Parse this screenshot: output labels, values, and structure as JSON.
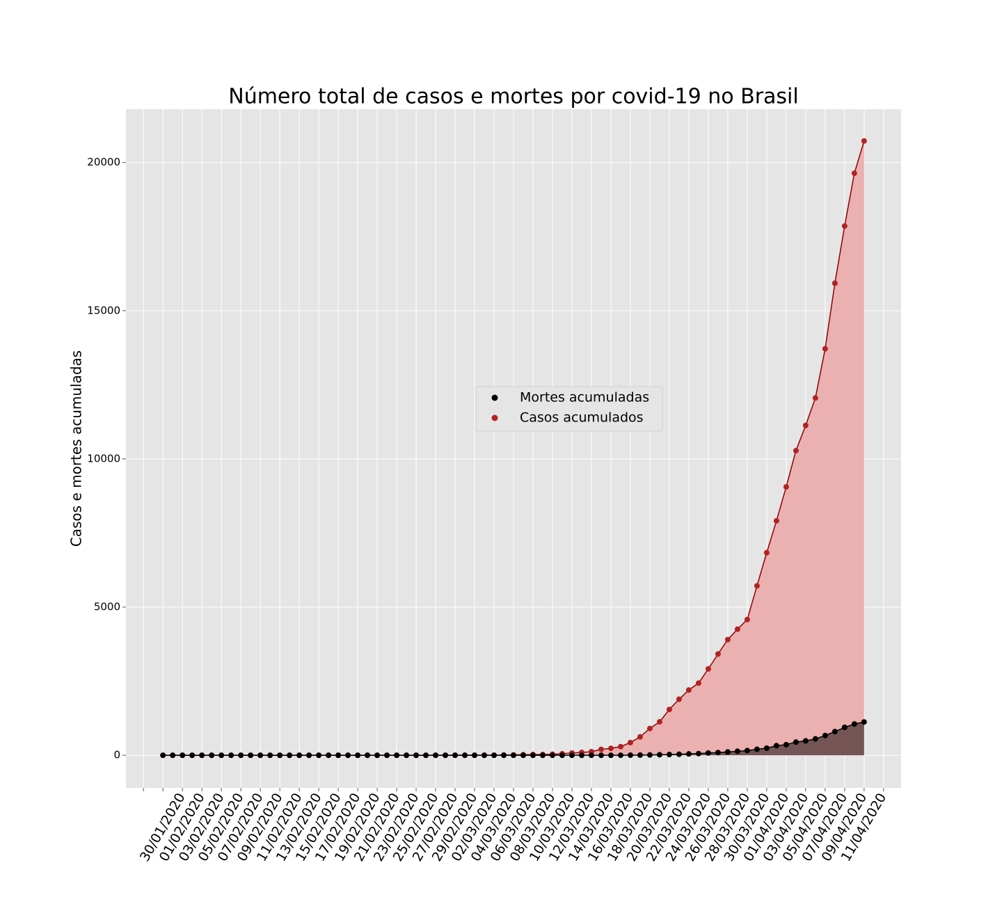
{
  "chart_data": {
    "type": "area_line",
    "title": "Número total de casos e mortes por covid-19 no Brasil",
    "y_label": "Casos e mortes acumuladas",
    "categories": [
      "30/01/2020",
      null,
      "01/02/2020",
      null,
      "03/02/2020",
      null,
      "05/02/2020",
      null,
      "07/02/2020",
      null,
      "09/02/2020",
      null,
      "11/02/2020",
      null,
      "13/02/2020",
      null,
      "15/02/2020",
      null,
      "17/02/2020",
      null,
      "19/02/2020",
      null,
      "21/02/2020",
      null,
      "23/02/2020",
      null,
      "25/02/2020",
      null,
      "27/02/2020",
      null,
      "29/02/2020",
      null,
      "02/03/2020",
      null,
      "04/03/2020",
      null,
      "06/03/2020",
      null,
      "08/03/2020",
      null,
      "10/03/2020",
      null,
      "12/03/2020",
      null,
      "14/03/2020",
      null,
      "16/03/2020",
      null,
      "18/03/2020",
      null,
      "20/03/2020",
      null,
      "22/03/2020",
      null,
      "24/03/2020",
      null,
      "26/03/2020",
      null,
      "28/03/2020",
      null,
      "30/03/2020",
      null,
      "01/04/2020",
      null,
      "03/04/2020",
      null,
      "05/04/2020",
      null,
      "07/04/2020",
      null,
      "09/04/2020",
      null,
      "11/04/2020"
    ],
    "series": [
      {
        "name": "Mortes acumuladas",
        "color": "#000000",
        "line_color": "#000000",
        "fill_color": "#745454",
        "values": [
          0,
          0,
          0,
          0,
          0,
          0,
          0,
          0,
          0,
          0,
          0,
          0,
          0,
          0,
          0,
          0,
          0,
          0,
          0,
          0,
          0,
          0,
          0,
          0,
          0,
          0,
          0,
          0,
          0,
          0,
          0,
          0,
          0,
          0,
          0,
          0,
          0,
          0,
          0,
          0,
          0,
          0,
          0,
          0,
          0,
          0,
          0,
          1,
          4,
          7,
          11,
          18,
          25,
          34,
          46,
          57,
          77,
          92,
          111,
          136,
          159,
          201,
          240,
          324,
          359,
          445,
          486,
          553,
          667,
          800,
          941,
          1056,
          1124
        ]
      },
      {
        "name": "Casos acumulados",
        "color": "#b22222",
        "line_color": "#8b0000",
        "fill_color": "#ebb0b0",
        "values": [
          0,
          0,
          0,
          0,
          0,
          0,
          0,
          0,
          0,
          0,
          0,
          0,
          0,
          0,
          0,
          0,
          0,
          0,
          0,
          0,
          0,
          0,
          0,
          0,
          0,
          0,
          0,
          1,
          1,
          1,
          2,
          2,
          2,
          2,
          3,
          8,
          13,
          19,
          25,
          25,
          34,
          52,
          77,
          98,
          121,
          200,
          234,
          291,
          428,
          621,
          904,
          1128,
          1546,
          1891,
          2201,
          2433,
          2915,
          3417,
          3904,
          4256,
          4579,
          5717,
          6836,
          7910,
          9056,
          10278,
          11130,
          12056,
          13717,
          15927,
          17857,
          19638,
          20727
        ]
      }
    ],
    "xlim": [
      -3.8,
      75.8
    ],
    "xticks": [
      -2,
      0,
      2,
      4,
      6,
      8,
      10,
      12,
      14,
      16,
      18,
      20,
      22,
      24,
      26,
      28,
      30,
      32,
      34,
      36,
      38,
      40,
      42,
      44,
      46,
      48,
      50,
      52,
      54,
      56,
      58,
      60,
      62,
      64,
      66,
      68,
      70,
      72,
      74
    ],
    "ylim": [
      -1100,
      21800
    ],
    "yticks": [
      0,
      5000,
      10000,
      15000,
      20000
    ],
    "grid": true,
    "legend": "center"
  }
}
